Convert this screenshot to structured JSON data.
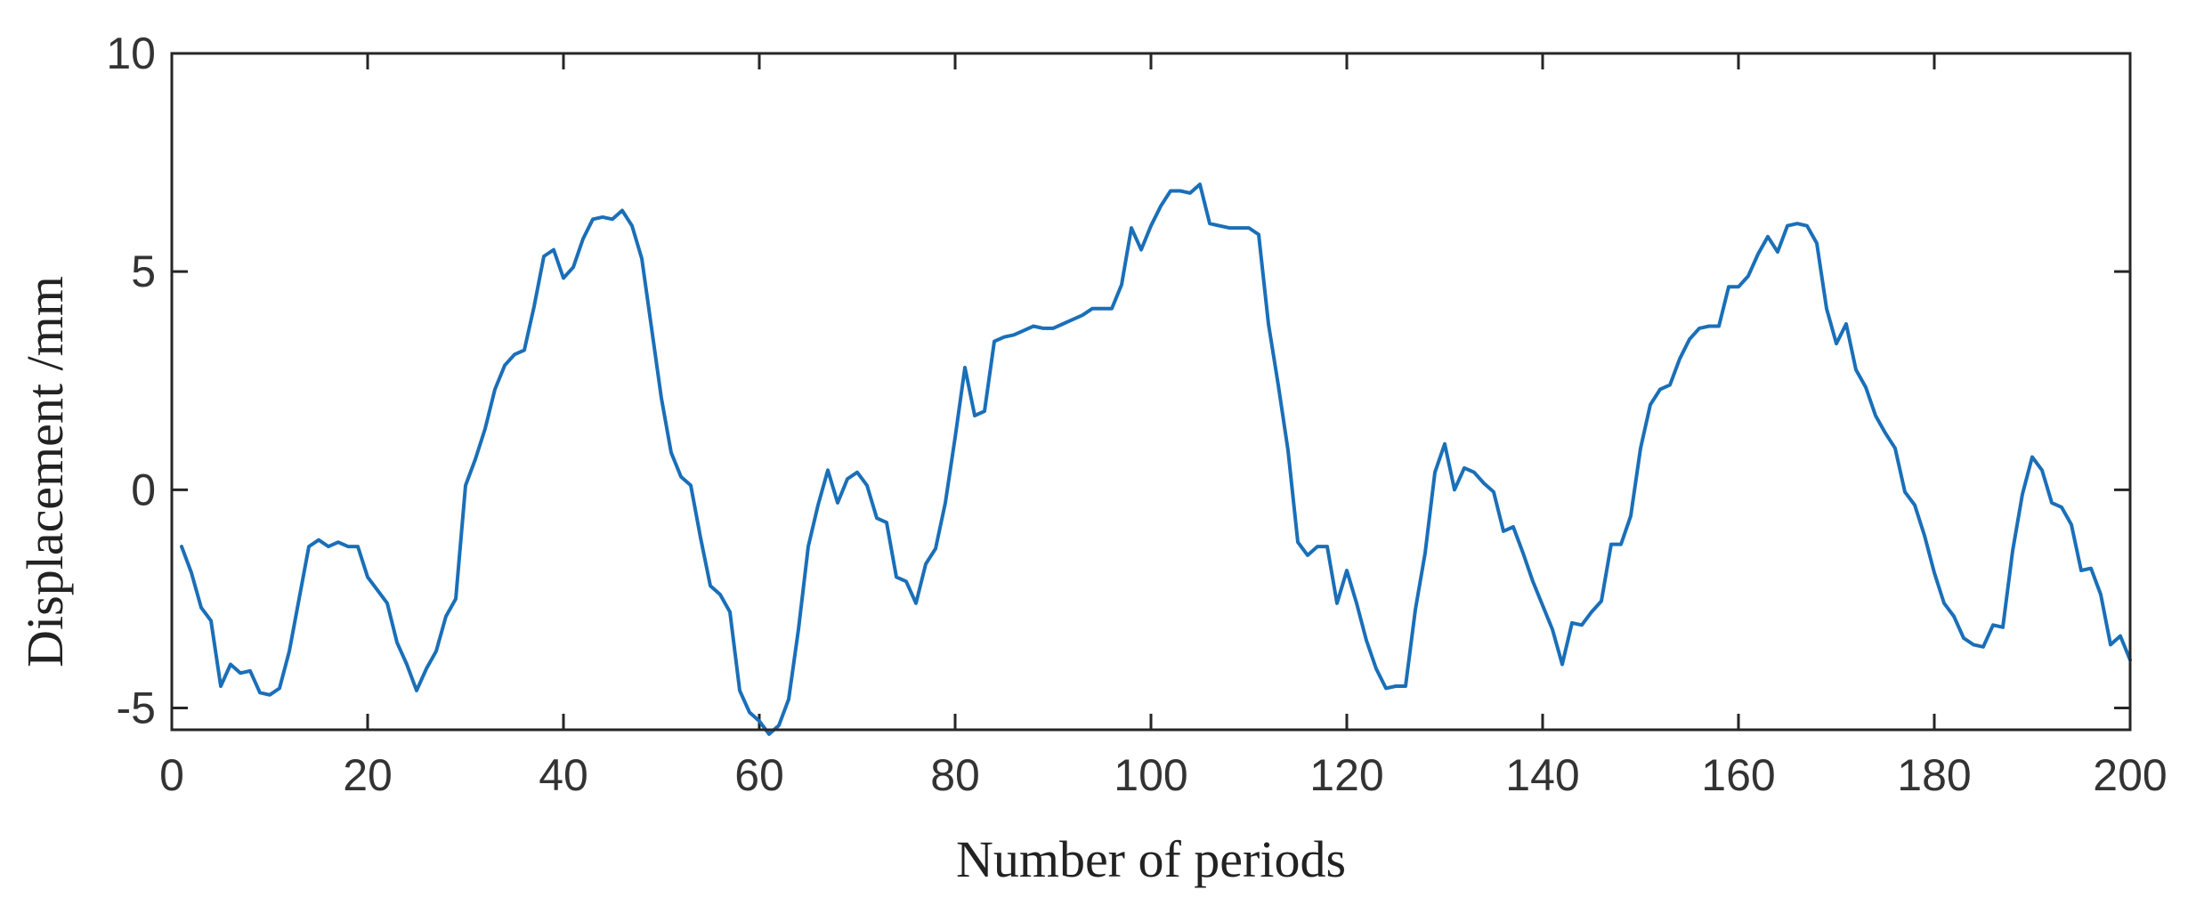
{
  "chart_data": {
    "type": "line",
    "title": "",
    "xlabel": "Number of periods",
    "ylabel": "Displacement /mm",
    "xlim": [
      0,
      200
    ],
    "ylim": [
      -5.5,
      10
    ],
    "xticks": [
      0,
      20,
      40,
      60,
      80,
      100,
      120,
      140,
      160,
      180,
      200
    ],
    "yticks": [
      -5,
      0,
      5,
      10
    ],
    "grid": false,
    "box": true,
    "line_color": "#1a6fb8",
    "series": [
      {
        "x": [
          1,
          2,
          3,
          4,
          5,
          6,
          7,
          8,
          9,
          10,
          11,
          12,
          13,
          14,
          15,
          16,
          17,
          18,
          19,
          20,
          21,
          22,
          23,
          24,
          25,
          26,
          27,
          28,
          29,
          30,
          31,
          32,
          33,
          34,
          35,
          36,
          37,
          38,
          39,
          40,
          41,
          42,
          43,
          44,
          45,
          46,
          47,
          48,
          49,
          50,
          51,
          52,
          53,
          54,
          55,
          56,
          57,
          58,
          59,
          60,
          61,
          62,
          63,
          64,
          65,
          66,
          67,
          68,
          69,
          70,
          71,
          72,
          73,
          74,
          75,
          76,
          77,
          78,
          79,
          80,
          81,
          82,
          83,
          84,
          85,
          86,
          87,
          88,
          89,
          90,
          91,
          92,
          93,
          94,
          95,
          96,
          97,
          98,
          99,
          100,
          101,
          102,
          103,
          104,
          105,
          106,
          107,
          108,
          109,
          110,
          111,
          112,
          113,
          114,
          115,
          116,
          117,
          118,
          119,
          120,
          121,
          122,
          123,
          124,
          125,
          126,
          127,
          128,
          129,
          130,
          131,
          132,
          133,
          134,
          135,
          136,
          137,
          138,
          139,
          140,
          141,
          142,
          143,
          144,
          145,
          146,
          147,
          148,
          149,
          150,
          151,
          152,
          153,
          154,
          155,
          156,
          157,
          158,
          159,
          160,
          161,
          162,
          163,
          164,
          165,
          166,
          167,
          168,
          169,
          170,
          171,
          172,
          173,
          174,
          175,
          176,
          177,
          178,
          179,
          180,
          181,
          182,
          183,
          184,
          185,
          186,
          187,
          188,
          189,
          190,
          191,
          192,
          193,
          194,
          195,
          196,
          197,
          198,
          199,
          200
        ],
        "y": [
          -1.3,
          -1.9,
          -2.7,
          -3.0,
          -4.5,
          -4.0,
          -4.2,
          -4.15,
          -4.65,
          -4.7,
          -4.55,
          -3.7,
          -2.5,
          -1.3,
          -1.15,
          -1.3,
          -1.2,
          -1.3,
          -1.3,
          -2.0,
          -2.3,
          -2.6,
          -3.5,
          -4.0,
          -4.6,
          -4.1,
          -3.7,
          -2.9,
          -2.5,
          0.1,
          0.7,
          1.4,
          2.3,
          2.85,
          3.1,
          3.2,
          4.2,
          5.35,
          5.5,
          4.85,
          5.1,
          5.75,
          6.2,
          6.25,
          6.2,
          6.4,
          6.05,
          5.3,
          3.7,
          2.1,
          0.85,
          0.3,
          0.1,
          -1.1,
          -2.2,
          -2.4,
          -2.8,
          -4.6,
          -5.1,
          -5.3,
          -5.6,
          -5.4,
          -4.8,
          -3.2,
          -1.3,
          -0.35,
          0.45,
          -0.3,
          0.25,
          0.4,
          0.1,
          -0.65,
          -0.75,
          -2.0,
          -2.1,
          -2.6,
          -1.7,
          -1.35,
          -0.3,
          1.2,
          2.8,
          1.7,
          1.8,
          3.4,
          3.5,
          3.55,
          3.65,
          3.75,
          3.7,
          3.7,
          3.8,
          3.9,
          4.0,
          4.15,
          4.15,
          4.15,
          4.7,
          6.0,
          5.5,
          6.05,
          6.5,
          6.85,
          6.85,
          6.8,
          7.0,
          6.1,
          6.05,
          6.0,
          6.0,
          6.0,
          5.85,
          3.8,
          2.4,
          0.9,
          -1.2,
          -1.5,
          -1.3,
          -1.3,
          -2.6,
          -1.85,
          -2.6,
          -3.45,
          -4.1,
          -4.55,
          -4.5,
          -4.5,
          -2.75,
          -1.45,
          0.4,
          1.05,
          0.0,
          0.5,
          0.4,
          0.15,
          -0.05,
          -0.95,
          -0.85,
          -1.45,
          -2.1,
          -2.65,
          -3.2,
          -4.0,
          -3.05,
          -3.1,
          -2.8,
          -2.55,
          -1.25,
          -1.25,
          -0.6,
          0.95,
          1.95,
          2.3,
          2.4,
          3.0,
          3.45,
          3.7,
          3.75,
          3.75,
          4.65,
          4.65,
          4.9,
          5.4,
          5.8,
          5.45,
          6.05,
          6.1,
          6.05,
          5.65,
          4.15,
          3.35,
          3.8,
          2.75,
          2.35,
          1.7,
          1.3,
          0.95,
          -0.05,
          -0.35,
          -1.05,
          -1.9,
          -2.6,
          -2.9,
          -3.4,
          -3.55,
          -3.6,
          -3.1,
          -3.15,
          -1.4,
          -0.1,
          0.75,
          0.45,
          -0.3,
          -0.4,
          -0.8,
          -1.85,
          -1.8,
          -2.4,
          -3.55,
          -3.35,
          -3.9
        ]
      }
    ]
  }
}
